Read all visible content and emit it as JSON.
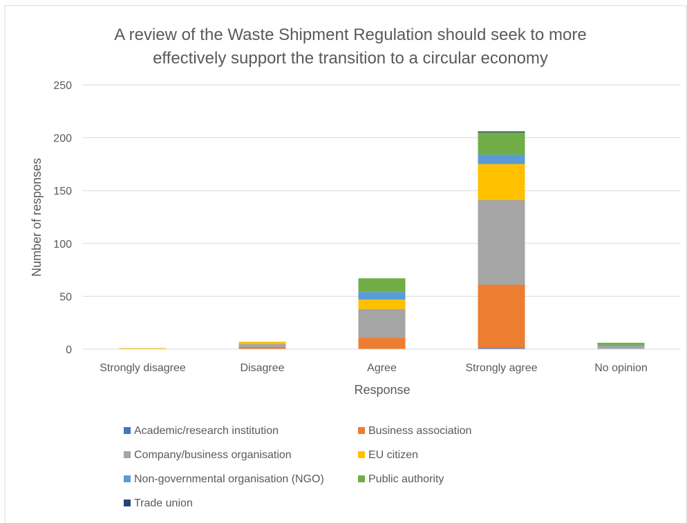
{
  "chart_data": {
    "type": "bar",
    "stacked": true,
    "title": "A review of the Waste Shipment Regulation should seek to more effectively support the transition to a circular economy",
    "title_lines": [
      "A review of the Waste Shipment Regulation should seek to more",
      "effectively support the transition to a circular economy"
    ],
    "xlabel": "Response",
    "ylabel": "Number of responses",
    "ylim": [
      0,
      250
    ],
    "yticks": [
      0,
      50,
      100,
      150,
      200,
      250
    ],
    "grid": true,
    "legend_position": "bottom",
    "categories": [
      "Strongly disagree",
      "Disagree",
      "Agree",
      "Strongly agree",
      "No opinion"
    ],
    "series": [
      {
        "name": "Academic/research institution",
        "color": "#4472C4",
        "values": [
          0,
          0,
          0,
          1,
          0
        ]
      },
      {
        "name": "Business association",
        "color": "#ED7D31",
        "values": [
          0,
          2,
          11,
          60,
          0
        ]
      },
      {
        "name": "Company/business organisation",
        "color": "#A5A5A5",
        "values": [
          0,
          3,
          27,
          80,
          3
        ]
      },
      {
        "name": "EU citizen",
        "color": "#FFC000",
        "values": [
          1,
          2,
          9,
          34,
          0
        ]
      },
      {
        "name": "Non-governmental organisation (NGO)",
        "color": "#5B9BD5",
        "values": [
          0,
          0,
          7,
          9,
          1
        ]
      },
      {
        "name": "Public authority",
        "color": "#70AD47",
        "values": [
          0,
          0,
          13,
          21,
          2
        ]
      },
      {
        "name": "Trade union",
        "color": "#264478",
        "values": [
          0,
          0,
          0,
          1,
          0
        ]
      }
    ]
  }
}
